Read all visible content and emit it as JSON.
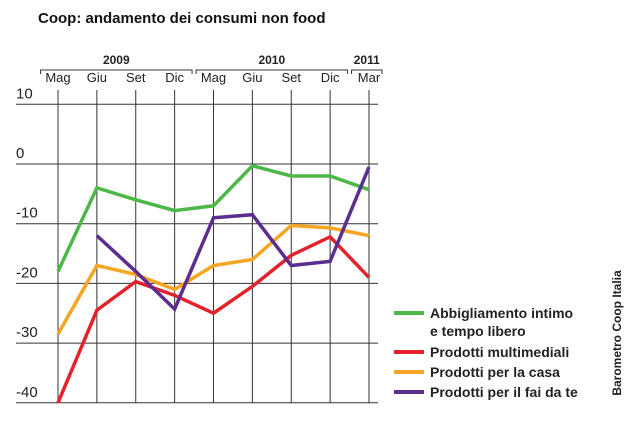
{
  "chart_data": {
    "type": "line",
    "title": "Coop: andamento dei consumi non food",
    "years": [
      {
        "label": "2009",
        "from": 0,
        "to": 3
      },
      {
        "label": "2010",
        "from": 4,
        "to": 7
      },
      {
        "label": "2011",
        "from": 8,
        "to": 8
      }
    ],
    "categories": [
      "Mag",
      "Giu",
      "Set",
      "Dic",
      "Mag",
      "Giu",
      "Set",
      "Dic",
      "Mar"
    ],
    "y_ticks": [
      10,
      0,
      -10,
      -20,
      -30,
      -40
    ],
    "ylim": [
      -40,
      10
    ],
    "grid": true,
    "legend_position": "bottom-right",
    "series": [
      {
        "name": "Abbigliamento intimo e tempo libero",
        "name_lines": [
          "Abbigliamento intimo",
          "e tempo libero"
        ],
        "color": "#4cb848",
        "values": [
          -18,
          -4,
          -6,
          -7.8,
          -7,
          -0.3,
          -2,
          -2,
          -4.3
        ]
      },
      {
        "name": "Prodotti multimediali",
        "name_lines": [
          "Prodotti multimediali"
        ],
        "color": "#e3232b",
        "values": [
          -40,
          -24.5,
          -19.7,
          -22,
          -25,
          -20.5,
          -15.3,
          -12.2,
          -19
        ]
      },
      {
        "name": "Prodotti per la casa",
        "name_lines": [
          "Prodotti per la casa"
        ],
        "color": "#f5a623",
        "values": [
          -28.5,
          -17,
          -18.5,
          -21,
          -17,
          -16,
          -10.3,
          -10.7,
          -12
        ]
      },
      {
        "name": "Prodotti per il fai da te",
        "name_lines": [
          "Prodotti per il fai da te"
        ],
        "color": "#5b2d8e",
        "values": [
          null,
          -12,
          -18,
          -24.3,
          -9,
          -8.5,
          -17,
          -16.3,
          -0.5
        ]
      }
    ],
    "source": "Barometro Coop Italia"
  }
}
